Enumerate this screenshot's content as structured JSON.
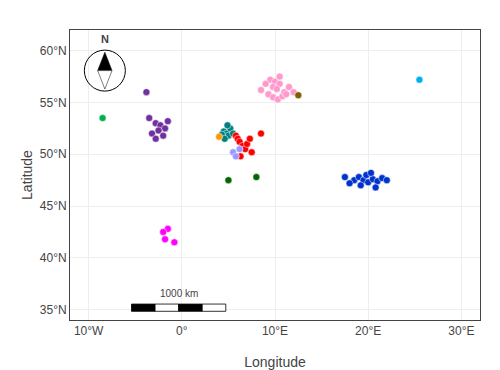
{
  "chart_data": {
    "type": "scatter",
    "xlabel": "Longitude",
    "ylabel": "Latitude",
    "xlim": [
      -12,
      32
    ],
    "ylim": [
      34,
      62
    ],
    "xticks": [
      {
        "value": -10,
        "label": "10°W"
      },
      {
        "value": 0,
        "label": "0°"
      },
      {
        "value": 10,
        "label": "10°E"
      },
      {
        "value": 20,
        "label": "20°E"
      },
      {
        "value": 30,
        "label": "30°E"
      }
    ],
    "yticks": [
      {
        "value": 35,
        "label": "35°N"
      },
      {
        "value": 40,
        "label": "40°N"
      },
      {
        "value": 45,
        "label": "45°N"
      },
      {
        "value": 50,
        "label": "50°N"
      },
      {
        "value": 55,
        "label": "55°N"
      },
      {
        "value": 60,
        "label": "60°N"
      }
    ],
    "grid": true,
    "marker": "circle",
    "annotations": [
      {
        "text": "1000 km"
      },
      {
        "text": "N"
      }
    ],
    "series": [
      {
        "color": "#7030a0",
        "x": [
          -3.5,
          -2.8,
          -2.3,
          -1.8,
          -2.5,
          -3.2,
          -2.0,
          -2.8,
          -1.5,
          -3.8
        ],
        "values": [
          53.5,
          53.0,
          52.8,
          52.5,
          52.3,
          52.0,
          51.8,
          51.5,
          53.2,
          56.0
        ]
      },
      {
        "color": "#00b050",
        "x": [
          -8.5
        ],
        "values": [
          53.5
        ]
      },
      {
        "color": "#ff99cc",
        "x": [
          9.5,
          10.0,
          10.5,
          9.8,
          10.2,
          9.3,
          9.8,
          10.3,
          10.8,
          11.0,
          11.5,
          10.5,
          9.0,
          8.5,
          12.0,
          11.2
        ],
        "values": [
          57.2,
          57.0,
          56.8,
          56.5,
          56.3,
          55.8,
          55.5,
          55.3,
          55.6,
          56.0,
          56.5,
          57.5,
          56.8,
          56.2,
          56.0,
          55.8
        ]
      },
      {
        "color": "#7f6000",
        "x": [
          12.5
        ],
        "values": [
          55.7
        ]
      },
      {
        "color": "#00b0f0",
        "x": [
          25.5
        ],
        "values": [
          57.2
        ]
      },
      {
        "color": "#008080",
        "x": [
          4.5,
          4.8,
          5.0,
          4.3,
          4.6,
          5.2,
          4.9,
          5.5
        ],
        "values": [
          52.2,
          52.0,
          51.8,
          51.9,
          51.5,
          52.5,
          52.8,
          52.0
        ]
      },
      {
        "color": "#ff9900",
        "x": [
          4.0
        ],
        "values": [
          51.7
        ]
      },
      {
        "color": "#ff0000",
        "x": [
          5.8,
          6.0,
          6.2,
          6.5,
          6.8,
          7.0,
          7.3,
          8.5,
          7.5,
          6.3
        ],
        "values": [
          51.8,
          51.5,
          51.2,
          50.8,
          50.5,
          51.0,
          51.5,
          52.0,
          50.2,
          49.8
        ]
      },
      {
        "color": "#9999ff",
        "x": [
          5.5,
          5.8,
          6.2
        ],
        "values": [
          50.2,
          49.8,
          50.5
        ]
      },
      {
        "color": "#006600",
        "x": [
          5.0,
          8.0
        ],
        "values": [
          47.5,
          47.8
        ]
      },
      {
        "color": "#ff00ff",
        "x": [
          -1.5,
          -2.0,
          -1.8,
          -0.8
        ],
        "values": [
          42.8,
          42.5,
          41.8,
          41.5
        ]
      },
      {
        "color": "#0033cc",
        "x": [
          18.5,
          19.0,
          19.5,
          20.0,
          20.5,
          21.0,
          21.5,
          18.0,
          19.8,
          20.3,
          17.5,
          22.0,
          19.2,
          20.8
        ],
        "values": [
          47.5,
          47.8,
          47.5,
          47.3,
          47.6,
          47.4,
          47.7,
          47.2,
          48.0,
          48.2,
          47.8,
          47.5,
          47.0,
          46.8
        ]
      }
    ]
  }
}
